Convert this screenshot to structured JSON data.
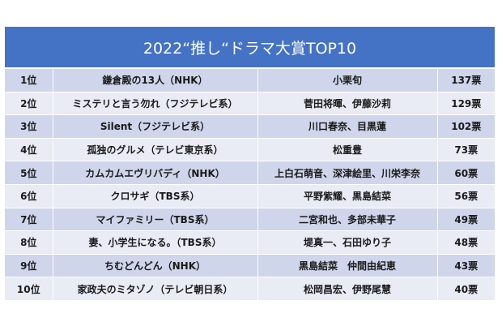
{
  "table": {
    "title": "2022“推し“ドラマ大賞TOP10",
    "colors": {
      "header": "#4472C4",
      "row_odd": "#CFD5EA",
      "row_even": "#E9EBF5"
    },
    "rows": [
      {
        "rank": "1位",
        "title": "鎌倉殿の13人（NHK）",
        "cast": "小栗旬",
        "votes": "137票"
      },
      {
        "rank": "2位",
        "title": "ミステリと言う勿れ（フジテレビ系）",
        "cast": "菅田将暉、伊藤沙莉",
        "votes": "129票"
      },
      {
        "rank": "3位",
        "title": "Silent（フジテレビ系）",
        "cast": "川口春奈、目黒蓮",
        "votes": "102票"
      },
      {
        "rank": "4位",
        "title": "孤独のグルメ（テレビ東京系）",
        "cast": "松重豊",
        "votes": "73票"
      },
      {
        "rank": "5位",
        "title": "カムカムエヴリバディ（NHK）",
        "cast": "上白石萌音、深津絵里、川栄李奈",
        "votes": "60票"
      },
      {
        "rank": "6位",
        "title": "クロサギ（TBS系）",
        "cast": "平野紫耀、黒島結菜",
        "votes": "56票"
      },
      {
        "rank": "7位",
        "title": "マイファミリー（TBS系）",
        "cast": "二宮和也、多部未華子",
        "votes": "49票"
      },
      {
        "rank": "8位",
        "title": "妻、小学生になる。（TBS系）",
        "cast": "堤真一、石田ゆり子",
        "votes": "48票"
      },
      {
        "rank": "9位",
        "title": "ちむどんどん（NHK）",
        "cast": "黒島結菜　仲間由紀恵",
        "votes": "43票"
      },
      {
        "rank": "10位",
        "title": "家政夫のミタゾノ（テレビ朝日系）",
        "cast": "松岡昌宏、伊野尾慧",
        "votes": "40票"
      }
    ]
  }
}
